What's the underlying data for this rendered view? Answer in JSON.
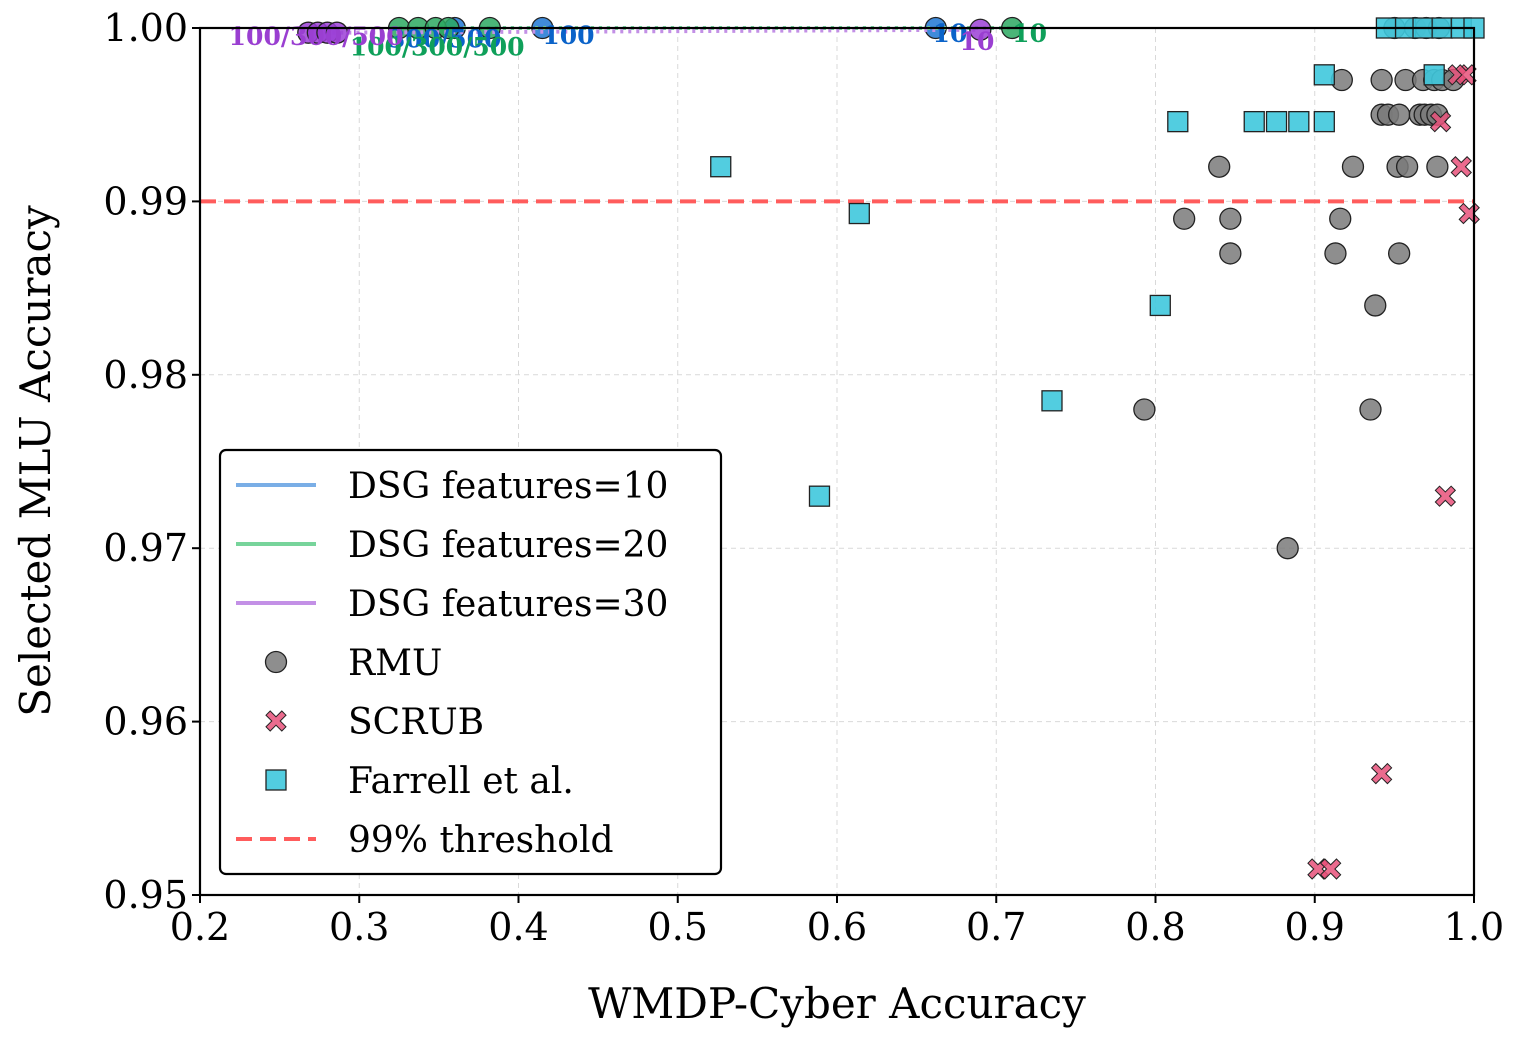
{
  "chart_data": {
    "type": "scatter",
    "title": "",
    "xlabel": "WMDP-Cyber Accuracy",
    "ylabel": "Selected MLU Accuracy",
    "xlim": [
      0.2,
      1.0
    ],
    "ylim": [
      0.95,
      1.0
    ],
    "x_ticks": [
      "0.2",
      "0.3",
      "0.4",
      "0.5",
      "0.6",
      "0.7",
      "0.8",
      "0.9",
      "1.0"
    ],
    "y_ticks": [
      "0.95",
      "0.96",
      "0.97",
      "0.98",
      "0.99",
      "1.00"
    ],
    "grid": true,
    "legend_position": "lower-left",
    "threshold": {
      "name": "99% threshold",
      "value": 0.99,
      "color": "#ff5c5c"
    },
    "dsg_series": [
      {
        "name": "DSG features=10",
        "line_color": "#7aaee6",
        "marker_color": "#1f77d4",
        "text_color": "#0b63c9",
        "points": [
          {
            "x": 0.36,
            "y": 1.0
          },
          {
            "x": 0.415,
            "y": 1.0
          },
          {
            "x": 0.662,
            "y": 1.0
          }
        ],
        "annotations": [
          {
            "text": "300/500",
            "x": 0.318,
            "y": 0.9994
          },
          {
            "text": "100",
            "x": 0.415,
            "y": 0.9996
          },
          {
            "text": "10",
            "x": 0.66,
            "y": 0.9997
          }
        ]
      },
      {
        "name": "DSG features=20",
        "line_color": "#77d49b",
        "marker_color": "#2ca860",
        "text_color": "#0fa05a",
        "points": [
          {
            "x": 0.325,
            "y": 1.0
          },
          {
            "x": 0.337,
            "y": 1.0
          },
          {
            "x": 0.348,
            "y": 1.0
          },
          {
            "x": 0.356,
            "y": 1.0
          },
          {
            "x": 0.382,
            "y": 1.0
          },
          {
            "x": 0.71,
            "y": 1.0
          }
        ],
        "annotations": [
          {
            "text": "100/300/500",
            "x": 0.294,
            "y": 0.99894
          },
          {
            "text": "10",
            "x": 0.71,
            "y": 0.9997
          }
        ]
      },
      {
        "name": "DSG features=30",
        "line_color": "#c390e6",
        "marker_color": "#9b3fd6",
        "text_color": "#9a3fd1",
        "points": [
          {
            "x": 0.268,
            "y": 0.99973
          },
          {
            "x": 0.274,
            "y": 0.99973
          },
          {
            "x": 0.28,
            "y": 0.99973
          },
          {
            "x": 0.286,
            "y": 0.99973
          },
          {
            "x": 0.69,
            "y": 0.9999
          }
        ],
        "annotations": [
          {
            "text": "100/300/500",
            "x": 0.218,
            "y": 0.99953
          },
          {
            "text": "10",
            "x": 0.677,
            "y": 0.99925
          }
        ]
      }
    ],
    "rmu": {
      "name": "RMU",
      "color": "#7a7a7a",
      "points": [
        {
          "x": 0.883,
          "y": 0.97
        },
        {
          "x": 0.793,
          "y": 0.978
        },
        {
          "x": 0.935,
          "y": 0.978
        },
        {
          "x": 0.938,
          "y": 0.984
        },
        {
          "x": 0.847,
          "y": 0.987
        },
        {
          "x": 0.913,
          "y": 0.987
        },
        {
          "x": 0.953,
          "y": 0.987
        },
        {
          "x": 0.818,
          "y": 0.989
        },
        {
          "x": 0.847,
          "y": 0.989
        },
        {
          "x": 0.916,
          "y": 0.989
        },
        {
          "x": 0.84,
          "y": 0.992
        },
        {
          "x": 0.924,
          "y": 0.992
        },
        {
          "x": 0.952,
          "y": 0.992
        },
        {
          "x": 0.958,
          "y": 0.992
        },
        {
          "x": 0.977,
          "y": 0.992
        },
        {
          "x": 0.942,
          "y": 0.995
        },
        {
          "x": 0.946,
          "y": 0.995
        },
        {
          "x": 0.953,
          "y": 0.995
        },
        {
          "x": 0.966,
          "y": 0.995
        },
        {
          "x": 0.969,
          "y": 0.995
        },
        {
          "x": 0.973,
          "y": 0.995
        },
        {
          "x": 0.977,
          "y": 0.995
        },
        {
          "x": 0.917,
          "y": 0.997
        },
        {
          "x": 0.942,
          "y": 0.997
        },
        {
          "x": 0.957,
          "y": 0.997
        },
        {
          "x": 0.968,
          "y": 0.997
        },
        {
          "x": 0.975,
          "y": 0.997
        },
        {
          "x": 0.98,
          "y": 0.997
        },
        {
          "x": 0.987,
          "y": 0.997
        },
        {
          "x": 0.95,
          "y": 1.0
        },
        {
          "x": 0.963,
          "y": 1.0
        },
        {
          "x": 0.97,
          "y": 1.0
        },
        {
          "x": 0.978,
          "y": 1.0
        }
      ]
    },
    "scrub": {
      "name": "SCRUB",
      "color": "#e8517a",
      "points": [
        {
          "x": 0.902,
          "y": 0.9515
        },
        {
          "x": 0.91,
          "y": 0.9515
        },
        {
          "x": 0.942,
          "y": 0.957
        },
        {
          "x": 0.982,
          "y": 0.973
        },
        {
          "x": 0.997,
          "y": 0.9893
        },
        {
          "x": 0.992,
          "y": 0.992
        },
        {
          "x": 0.979,
          "y": 0.9946
        },
        {
          "x": 0.99,
          "y": 0.9973
        },
        {
          "x": 0.995,
          "y": 0.9973
        }
      ]
    },
    "farrell": {
      "name": "Farrell et al.",
      "color": "#3fc8dd",
      "points": [
        {
          "x": 0.589,
          "y": 0.973
        },
        {
          "x": 0.735,
          "y": 0.9785
        },
        {
          "x": 0.803,
          "y": 0.984
        },
        {
          "x": 0.614,
          "y": 0.9893
        },
        {
          "x": 0.527,
          "y": 0.992
        },
        {
          "x": 0.814,
          "y": 0.9946
        },
        {
          "x": 0.862,
          "y": 0.9946
        },
        {
          "x": 0.876,
          "y": 0.9946
        },
        {
          "x": 0.89,
          "y": 0.9946
        },
        {
          "x": 0.906,
          "y": 0.9946
        },
        {
          "x": 0.906,
          "y": 0.9973
        },
        {
          "x": 0.975,
          "y": 0.9973
        },
        {
          "x": 0.945,
          "y": 1.0
        },
        {
          "x": 0.957,
          "y": 1.0
        },
        {
          "x": 0.968,
          "y": 1.0
        },
        {
          "x": 0.98,
          "y": 1.0
        },
        {
          "x": 0.992,
          "y": 1.0
        },
        {
          "x": 1.0,
          "y": 1.0
        }
      ]
    }
  }
}
